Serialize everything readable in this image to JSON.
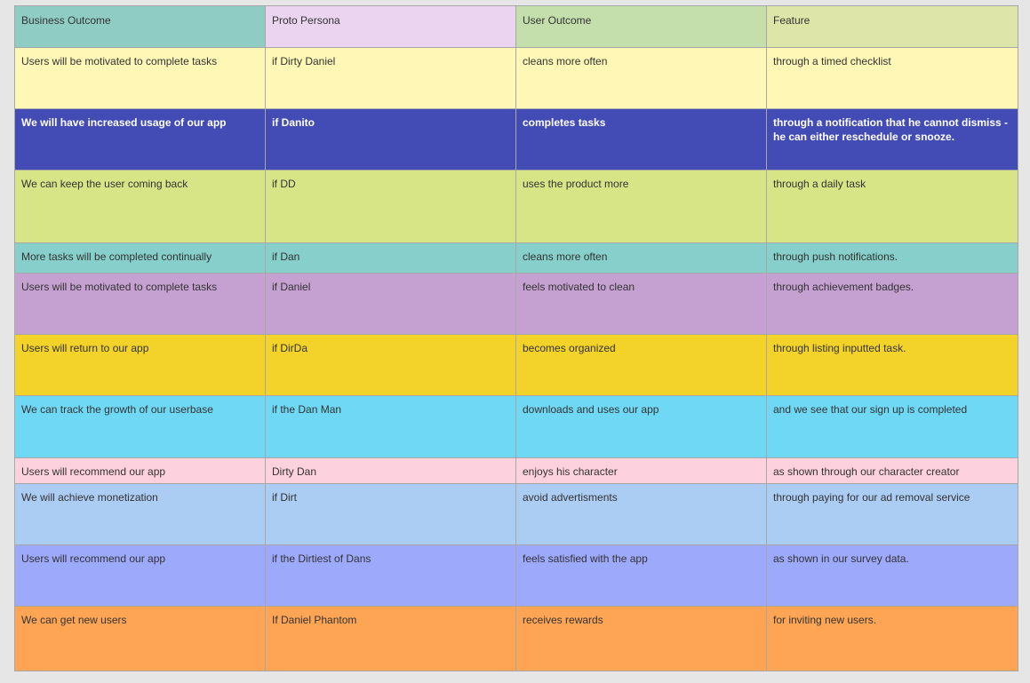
{
  "headers": [
    {
      "label": "Business Outcome",
      "color": "#8fcdc4"
    },
    {
      "label": "Proto Persona",
      "color": "#ead4f0"
    },
    {
      "label": "User Outcome",
      "color": "#c4dfac"
    },
    {
      "label": "Feature",
      "color": "#dde6a8"
    }
  ],
  "rows": [
    {
      "color": "#fff7b5",
      "bold": false,
      "cells": [
        "Users will be motivated to complete tasks",
        "if Dirty Daniel",
        "cleans more often",
        "through a timed checklist"
      ]
    },
    {
      "color": "#434bb4",
      "bold": true,
      "cells": [
        "We will have increased usage of our app",
        "if Danito",
        "completes tasks",
        "through a notification that he cannot dismiss  - he can either reschedule or snooze."
      ]
    },
    {
      "color": "#d7e587",
      "bold": false,
      "cells": [
        "We can keep the user coming back",
        "if DD",
        "uses the product more",
        "through a daily task"
      ]
    },
    {
      "color": "#86cfca",
      "bold": false,
      "cells": [
        "More tasks will be completed continually",
        "if Dan",
        "cleans  more often",
        "through push notifications."
      ]
    },
    {
      "color": "#c5a1d1",
      "bold": false,
      "cells": [
        "Users will be motivated to complete tasks",
        "if Daniel",
        "feels motivated to clean",
        "through achievement badges."
      ]
    },
    {
      "color": "#f3d229",
      "bold": false,
      "cells": [
        "Users will return to our app",
        "if DirDa",
        "becomes organized",
        "through listing inputted task."
      ]
    },
    {
      "color": "#6fd8f4",
      "bold": false,
      "cells": [
        "We can track the growth of our userbase",
        "if the Dan Man",
        "downloads and uses our app",
        "and we see that our sign up is completed"
      ]
    },
    {
      "color": "#fed1de",
      "bold": false,
      "cells": [
        "Users will recommend our app",
        "Dirty Dan",
        "enjoys his character",
        "as shown through our character creator"
      ]
    },
    {
      "color": "#abcdf3",
      "bold": false,
      "cells": [
        "We will achieve monetization",
        "if Dirt",
        "avoid advertisments",
        "through paying for our ad removal service"
      ]
    },
    {
      "color": "#9da9fb",
      "bold": false,
      "cells": [
        "Users will recommend our app",
        "if the Dirtiest of Dans",
        "feels satisfied with the app",
        "as shown in our survey data."
      ]
    },
    {
      "color": "#fda554",
      "bold": false,
      "cells": [
        "We can get new users",
        "If Daniel Phantom",
        "receives rewards",
        "for inviting new users."
      ]
    }
  ]
}
